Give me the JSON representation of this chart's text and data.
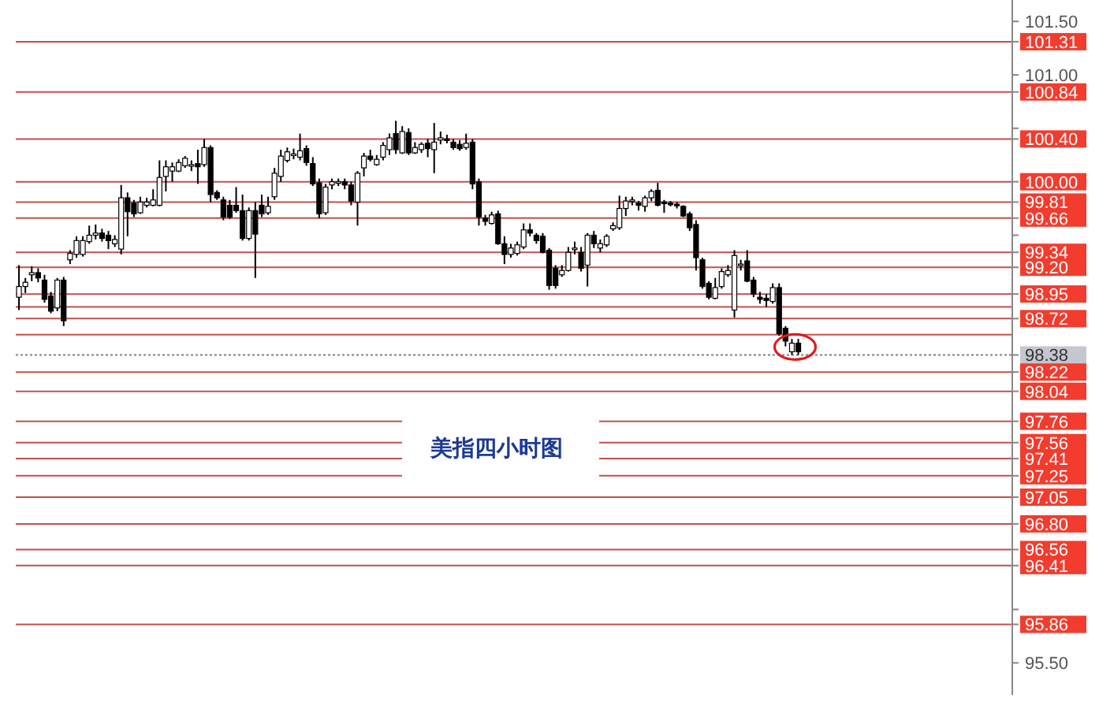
{
  "chart_data": {
    "type": "candlestick",
    "annotations": [
      "美指四小时图"
    ],
    "tick_labels": "y",
    "categories": [
      null,
      null,
      null,
      null,
      null,
      null,
      null,
      null,
      null,
      null,
      null,
      null,
      null,
      null,
      null,
      null,
      null,
      null,
      null,
      null,
      null,
      null,
      null,
      null,
      null,
      null,
      null,
      null,
      null,
      null,
      null,
      null,
      null,
      null,
      null,
      null,
      null,
      null,
      null,
      null,
      null,
      null,
      null,
      null,
      null,
      null,
      null,
      null,
      null,
      null,
      null,
      null,
      null,
      null,
      null,
      null,
      null,
      null,
      null,
      null,
      null,
      null,
      null,
      null,
      null,
      null,
      null,
      null,
      null,
      null,
      null,
      null,
      null,
      null,
      null,
      null,
      null,
      null,
      null,
      null,
      null,
      null,
      null,
      null,
      null,
      null,
      null,
      null,
      null,
      null,
      null,
      null,
      null,
      null,
      null,
      null,
      null,
      null,
      null,
      null,
      null,
      null,
      null,
      null,
      null,
      null,
      null,
      null,
      null,
      null,
      null,
      null,
      null,
      null,
      null,
      null,
      null,
      null,
      null,
      null,
      null,
      null,
      null,
      null,
      null,
      null,
      null,
      null,
      null,
      null,
      null,
      null,
      null,
      null,
      null,
      null,
      null,
      null,
      null,
      null,
      null,
      null,
      null,
      null,
      null,
      null,
      null,
      null,
      null,
      null,
      null,
      null,
      null,
      null,
      null,
      null
    ],
    "ohlc": [
      [
        98.92,
        99.22,
        98.8,
        99.02
      ],
      [
        99.02,
        99.1,
        98.96,
        99.06
      ],
      [
        99.13,
        99.21,
        99.07,
        99.15
      ],
      [
        99.15,
        99.19,
        99.06,
        99.1
      ],
      [
        99.08,
        99.13,
        98.87,
        98.9
      ],
      [
        98.93,
        98.97,
        98.77,
        98.79
      ],
      [
        98.82,
        99.1,
        98.79,
        99.08
      ],
      [
        99.08,
        99.11,
        98.65,
        98.7
      ],
      [
        99.27,
        99.36,
        99.23,
        99.33
      ],
      [
        99.32,
        99.49,
        99.29,
        99.45
      ],
      [
        99.32,
        99.49,
        99.3,
        99.45
      ],
      [
        99.44,
        99.59,
        99.42,
        99.5
      ],
      [
        99.5,
        99.6,
        99.46,
        99.52
      ],
      [
        99.52,
        99.56,
        99.44,
        99.47
      ],
      [
        99.5,
        99.54,
        99.37,
        99.45
      ],
      [
        99.42,
        99.5,
        99.39,
        99.46
      ],
      [
        99.37,
        99.97,
        99.32,
        99.85
      ],
      [
        99.85,
        99.9,
        99.49,
        99.72
      ],
      [
        99.8,
        99.83,
        99.67,
        99.7
      ],
      [
        99.71,
        99.86,
        99.7,
        99.81
      ],
      [
        99.78,
        99.85,
        99.76,
        99.81
      ],
      [
        99.78,
        99.93,
        99.77,
        99.83
      ],
      [
        99.78,
        100.2,
        99.77,
        100.04
      ],
      [
        100.05,
        100.2,
        99.91,
        100.14
      ],
      [
        100.1,
        100.18,
        100.0,
        100.14
      ],
      [
        100.1,
        100.21,
        100.09,
        100.18
      ],
      [
        100.15,
        100.24,
        100.13,
        100.22
      ],
      [
        100.15,
        100.2,
        100.1,
        100.16
      ],
      [
        100.17,
        100.3,
        99.98,
        100.14
      ],
      [
        100.16,
        100.4,
        100.14,
        100.32
      ],
      [
        100.32,
        100.34,
        99.81,
        99.88
      ],
      [
        99.9,
        99.92,
        99.83,
        99.85
      ],
      [
        99.83,
        99.86,
        99.64,
        99.67
      ],
      [
        99.78,
        99.83,
        99.65,
        99.67
      ],
      [
        99.78,
        99.95,
        99.71,
        99.73
      ],
      [
        99.73,
        99.88,
        99.45,
        99.47
      ],
      [
        99.47,
        99.76,
        99.45,
        99.73
      ],
      [
        99.73,
        99.81,
        99.1,
        99.51
      ],
      [
        99.78,
        99.88,
        99.67,
        99.7
      ],
      [
        99.71,
        99.86,
        99.69,
        99.77
      ],
      [
        99.86,
        100.13,
        99.83,
        100.08
      ],
      [
        100.05,
        100.3,
        100.0,
        100.24
      ],
      [
        100.2,
        100.32,
        100.18,
        100.28
      ],
      [
        100.25,
        100.31,
        100.21,
        100.26
      ],
      [
        100.23,
        100.45,
        100.2,
        100.29
      ],
      [
        100.31,
        100.34,
        100.15,
        100.18
      ],
      [
        100.17,
        100.23,
        99.96,
        99.98
      ],
      [
        99.99,
        100.03,
        99.66,
        99.7
      ],
      [
        99.71,
        99.98,
        99.69,
        99.95
      ],
      [
        99.97,
        100.03,
        99.93,
        100.0
      ],
      [
        99.99,
        100.03,
        99.96,
        100.0
      ],
      [
        100.0,
        100.03,
        99.93,
        99.97
      ],
      [
        99.97,
        100.0,
        99.78,
        99.82
      ],
      [
        99.81,
        100.1,
        99.59,
        100.08
      ],
      [
        100.13,
        100.27,
        100.05,
        100.24
      ],
      [
        100.24,
        100.3,
        100.19,
        100.21
      ],
      [
        100.16,
        100.25,
        100.15,
        100.21
      ],
      [
        100.23,
        100.37,
        100.2,
        100.34
      ],
      [
        100.3,
        100.45,
        100.25,
        100.41
      ],
      [
        100.45,
        100.57,
        100.26,
        100.3
      ],
      [
        100.27,
        100.52,
        100.26,
        100.47
      ],
      [
        100.46,
        100.5,
        100.25,
        100.27
      ],
      [
        100.27,
        100.37,
        100.26,
        100.32
      ],
      [
        100.3,
        100.37,
        100.27,
        100.35
      ],
      [
        100.36,
        100.4,
        100.23,
        100.31
      ],
      [
        100.3,
        100.55,
        100.08,
        100.37
      ],
      [
        100.39,
        100.47,
        100.35,
        100.41
      ],
      [
        100.4,
        100.44,
        100.36,
        100.39
      ],
      [
        100.37,
        100.4,
        100.3,
        100.32
      ],
      [
        100.35,
        100.39,
        100.29,
        100.31
      ],
      [
        100.32,
        100.45,
        100.3,
        100.36
      ],
      [
        100.37,
        100.4,
        99.93,
        99.98
      ],
      [
        100.0,
        100.03,
        99.59,
        99.67
      ],
      [
        99.66,
        99.69,
        99.59,
        99.63
      ],
      [
        99.61,
        99.72,
        99.6,
        99.69
      ],
      [
        99.7,
        99.73,
        99.41,
        99.42
      ],
      [
        99.42,
        99.49,
        99.23,
        99.32
      ],
      [
        99.32,
        99.42,
        99.29,
        99.38
      ],
      [
        99.33,
        99.44,
        99.31,
        99.41
      ],
      [
        99.39,
        99.61,
        99.37,
        99.55
      ],
      [
        99.55,
        99.61,
        99.49,
        99.52
      ],
      [
        99.5,
        99.52,
        99.42,
        99.45
      ],
      [
        99.49,
        99.52,
        99.33,
        99.34
      ],
      [
        99.36,
        99.38,
        98.99,
        99.03
      ],
      [
        99.19,
        99.22,
        99.0,
        99.03
      ],
      [
        99.13,
        99.22,
        99.11,
        99.17
      ],
      [
        99.17,
        99.39,
        99.16,
        99.34
      ],
      [
        99.37,
        99.44,
        99.32,
        99.38
      ],
      [
        99.34,
        99.39,
        99.16,
        99.19
      ],
      [
        99.22,
        99.52,
        99.02,
        99.5
      ],
      [
        99.5,
        99.54,
        99.38,
        99.42
      ],
      [
        99.38,
        99.46,
        99.34,
        99.42
      ],
      [
        99.41,
        99.51,
        99.39,
        99.49
      ],
      [
        99.56,
        99.62,
        99.54,
        99.59
      ],
      [
        99.57,
        99.87,
        99.55,
        99.75
      ],
      [
        99.75,
        99.86,
        99.68,
        99.82
      ],
      [
        99.82,
        99.86,
        99.78,
        99.83
      ],
      [
        99.8,
        99.82,
        99.73,
        99.78
      ],
      [
        99.77,
        99.87,
        99.72,
        99.85
      ],
      [
        99.85,
        99.93,
        99.82,
        99.91
      ],
      [
        99.92,
        99.99,
        99.77,
        99.78
      ],
      [
        99.81,
        99.83,
        99.71,
        99.8
      ],
      [
        99.8,
        99.82,
        99.77,
        99.79
      ],
      [
        99.79,
        99.81,
        99.75,
        99.78
      ],
      [
        99.77,
        99.78,
        99.67,
        99.68
      ],
      [
        99.7,
        99.72,
        99.54,
        99.57
      ],
      [
        99.6,
        99.64,
        99.17,
        99.29
      ],
      [
        99.27,
        99.29,
        99.0,
        99.02
      ],
      [
        99.05,
        99.07,
        98.9,
        98.92
      ],
      [
        98.91,
        99.1,
        98.9,
        99.01
      ],
      [
        99.02,
        99.19,
        99.0,
        99.16
      ],
      [
        99.13,
        99.22,
        99.11,
        99.17
      ],
      [
        98.8,
        99.36,
        98.73,
        99.31
      ],
      [
        99.22,
        99.27,
        99.17,
        99.23
      ],
      [
        99.26,
        99.36,
        99.06,
        99.07
      ],
      [
        99.08,
        99.11,
        98.92,
        98.95
      ],
      [
        98.92,
        98.97,
        98.86,
        98.9
      ],
      [
        98.91,
        98.95,
        98.83,
        98.89
      ],
      [
        98.88,
        99.05,
        98.86,
        99.01
      ],
      [
        99.01,
        99.05,
        98.56,
        98.58
      ],
      [
        98.63,
        98.65,
        98.46,
        98.51
      ],
      [
        98.41,
        98.53,
        98.38,
        98.49
      ],
      [
        98.49,
        98.53,
        98.38,
        98.41
      ],
      null,
      null,
      null,
      null,
      null,
      null,
      null,
      null,
      null,
      null,
      null,
      null,
      null,
      null,
      null,
      null,
      null,
      null,
      null,
      null,
      null,
      null,
      null,
      null,
      null,
      null,
      null,
      null,
      null,
      null,
      null,
      null,
      null
    ],
    "ylim": [
      95.2,
      101.7
    ],
    "yticks": [
      {
        "value": 101.5,
        "label": "101.50"
      },
      {
        "value": 101.0,
        "label": "101.00"
      },
      {
        "value": 100.5,
        "label": null
      },
      {
        "value": 99.5,
        "label": null
      },
      {
        "value": 96.0,
        "label": null
      },
      {
        "value": 95.5,
        "label": "95.50"
      }
    ],
    "ref_lines": [
      {
        "axis": "y",
        "value": 101.31,
        "label": "101.31",
        "color": "#c0504d",
        "line_style": "solid"
      },
      {
        "axis": "y",
        "value": 100.84,
        "label": "100.84",
        "color": "#c0504d",
        "line_style": "solid"
      },
      {
        "axis": "y",
        "value": 100.4,
        "label": "100.40",
        "color": "#c0504d",
        "line_style": "solid"
      },
      {
        "axis": "y",
        "value": 100.0,
        "label": "100.00",
        "color": "#c0504d",
        "line_style": "solid"
      },
      {
        "axis": "y",
        "value": 99.81,
        "label": "99.81",
        "color": "#c0504d",
        "line_style": "solid"
      },
      {
        "axis": "y",
        "value": 99.66,
        "label": "99.66",
        "color": "#c0504d",
        "line_style": "solid"
      },
      {
        "axis": "y",
        "value": 99.34,
        "label": "99.34",
        "color": "#c0504d",
        "line_style": "solid"
      },
      {
        "axis": "y",
        "value": 99.2,
        "label": "99.20",
        "color": "#c0504d",
        "line_style": "solid"
      },
      {
        "axis": "y",
        "value": 98.95,
        "label": "98.95",
        "color": "#c0504d",
        "line_style": "solid"
      },
      {
        "axis": "y",
        "value": 98.83,
        "color": "#c0504d",
        "line_style": "solid"
      },
      {
        "axis": "y",
        "value": 98.72,
        "label": "98.72",
        "color": "#c0504d",
        "line_style": "solid"
      },
      {
        "axis": "y",
        "value": 98.57,
        "color": "#c0504d",
        "line_style": "solid"
      },
      {
        "axis": "y",
        "value": 98.38,
        "label": "98.38",
        "color": "#808080",
        "line_style": "dotted"
      },
      {
        "axis": "y",
        "value": 98.22,
        "label": "98.22",
        "color": "#c0504d",
        "line_style": "solid"
      },
      {
        "axis": "y",
        "value": 98.04,
        "label": "98.04",
        "color": "#c0504d",
        "line_style": "solid"
      },
      {
        "axis": "y",
        "value": 97.76,
        "label": "97.76",
        "color": "#c0504d",
        "line_style": "solid"
      },
      {
        "axis": "y",
        "value": 97.56,
        "label": "97.56",
        "color": "#c0504d",
        "line_style": "solid"
      },
      {
        "axis": "y",
        "value": 97.41,
        "label": "97.41",
        "color": "#c0504d",
        "line_style": "solid"
      },
      {
        "axis": "y",
        "value": 97.25,
        "label": "97.25",
        "color": "#c0504d",
        "line_style": "solid"
      },
      {
        "axis": "y",
        "value": 97.05,
        "label": "97.05",
        "color": "#c0504d",
        "line_style": "solid"
      },
      {
        "axis": "y",
        "value": 96.8,
        "label": "96.80",
        "color": "#c0504d",
        "line_style": "solid"
      },
      {
        "axis": "y",
        "value": 96.56,
        "label": "96.56",
        "color": "#c0504d",
        "line_style": "solid"
      },
      {
        "axis": "y",
        "value": 96.41,
        "label": "96.41",
        "color": "#c0504d",
        "line_style": "solid"
      },
      {
        "axis": "y",
        "value": 95.86,
        "label": "95.86",
        "color": "#c0504d",
        "line_style": "solid"
      }
    ]
  }
}
